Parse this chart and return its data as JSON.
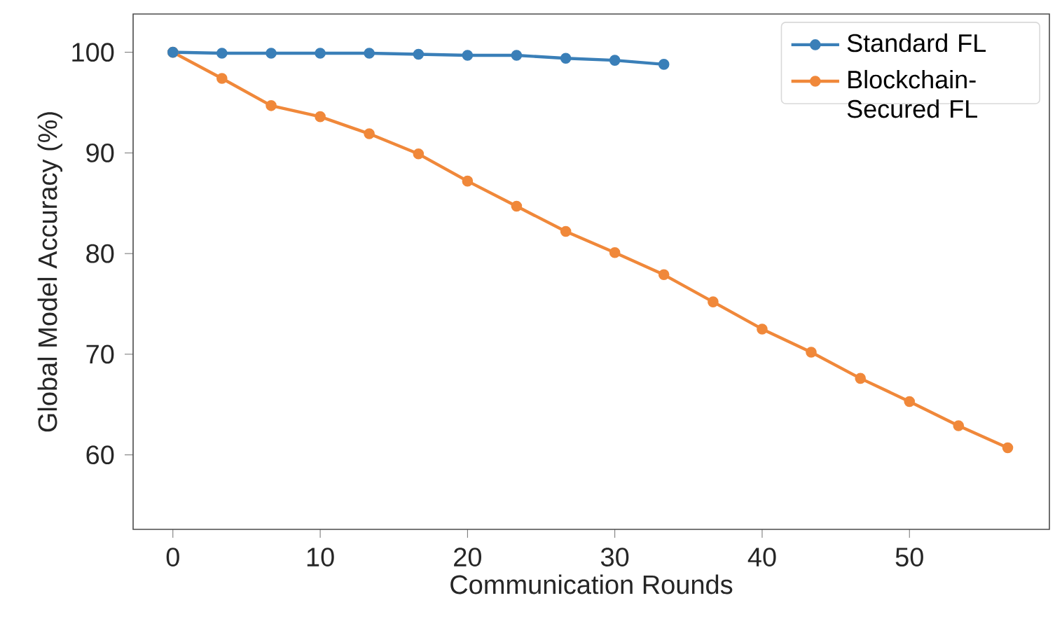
{
  "chart_data": {
    "type": "line",
    "xlabel": "Communication Rounds",
    "ylabel": "Global Model Accuracy (%)",
    "xlim": [
      -2.7,
      59.5
    ],
    "ylim": [
      52.6,
      103.8
    ],
    "xticks": [
      0,
      10,
      20,
      30,
      40,
      50
    ],
    "yticks": [
      60,
      70,
      80,
      90,
      100
    ],
    "grid": false,
    "legend": "top right",
    "marker": "circle",
    "line_style": "solid",
    "series": [
      {
        "name": "Standard FL",
        "color": "#3a7fb8",
        "x": [
          0,
          3.33,
          6.67,
          10,
          13.33,
          16.67,
          20,
          23.33,
          26.67,
          30,
          33.33
        ],
        "values": [
          100,
          99.9,
          99.9,
          99.9,
          99.9,
          99.8,
          99.7,
          99.7,
          99.4,
          99.2,
          98.8
        ]
      },
      {
        "name": "Blockchain-Secured FL",
        "color": "#f0883a",
        "x": [
          0,
          3.33,
          6.67,
          10,
          13.33,
          16.67,
          20,
          23.33,
          26.67,
          30,
          33.33,
          36.67,
          40,
          43.33,
          46.67,
          50,
          53.33,
          56.67
        ],
        "values": [
          100,
          97.4,
          94.7,
          93.6,
          91.9,
          89.9,
          87.2,
          84.7,
          82.2,
          80.1,
          77.9,
          75.2,
          72.5,
          70.2,
          67.6,
          65.3,
          62.9,
          60.7
        ]
      }
    ]
  }
}
